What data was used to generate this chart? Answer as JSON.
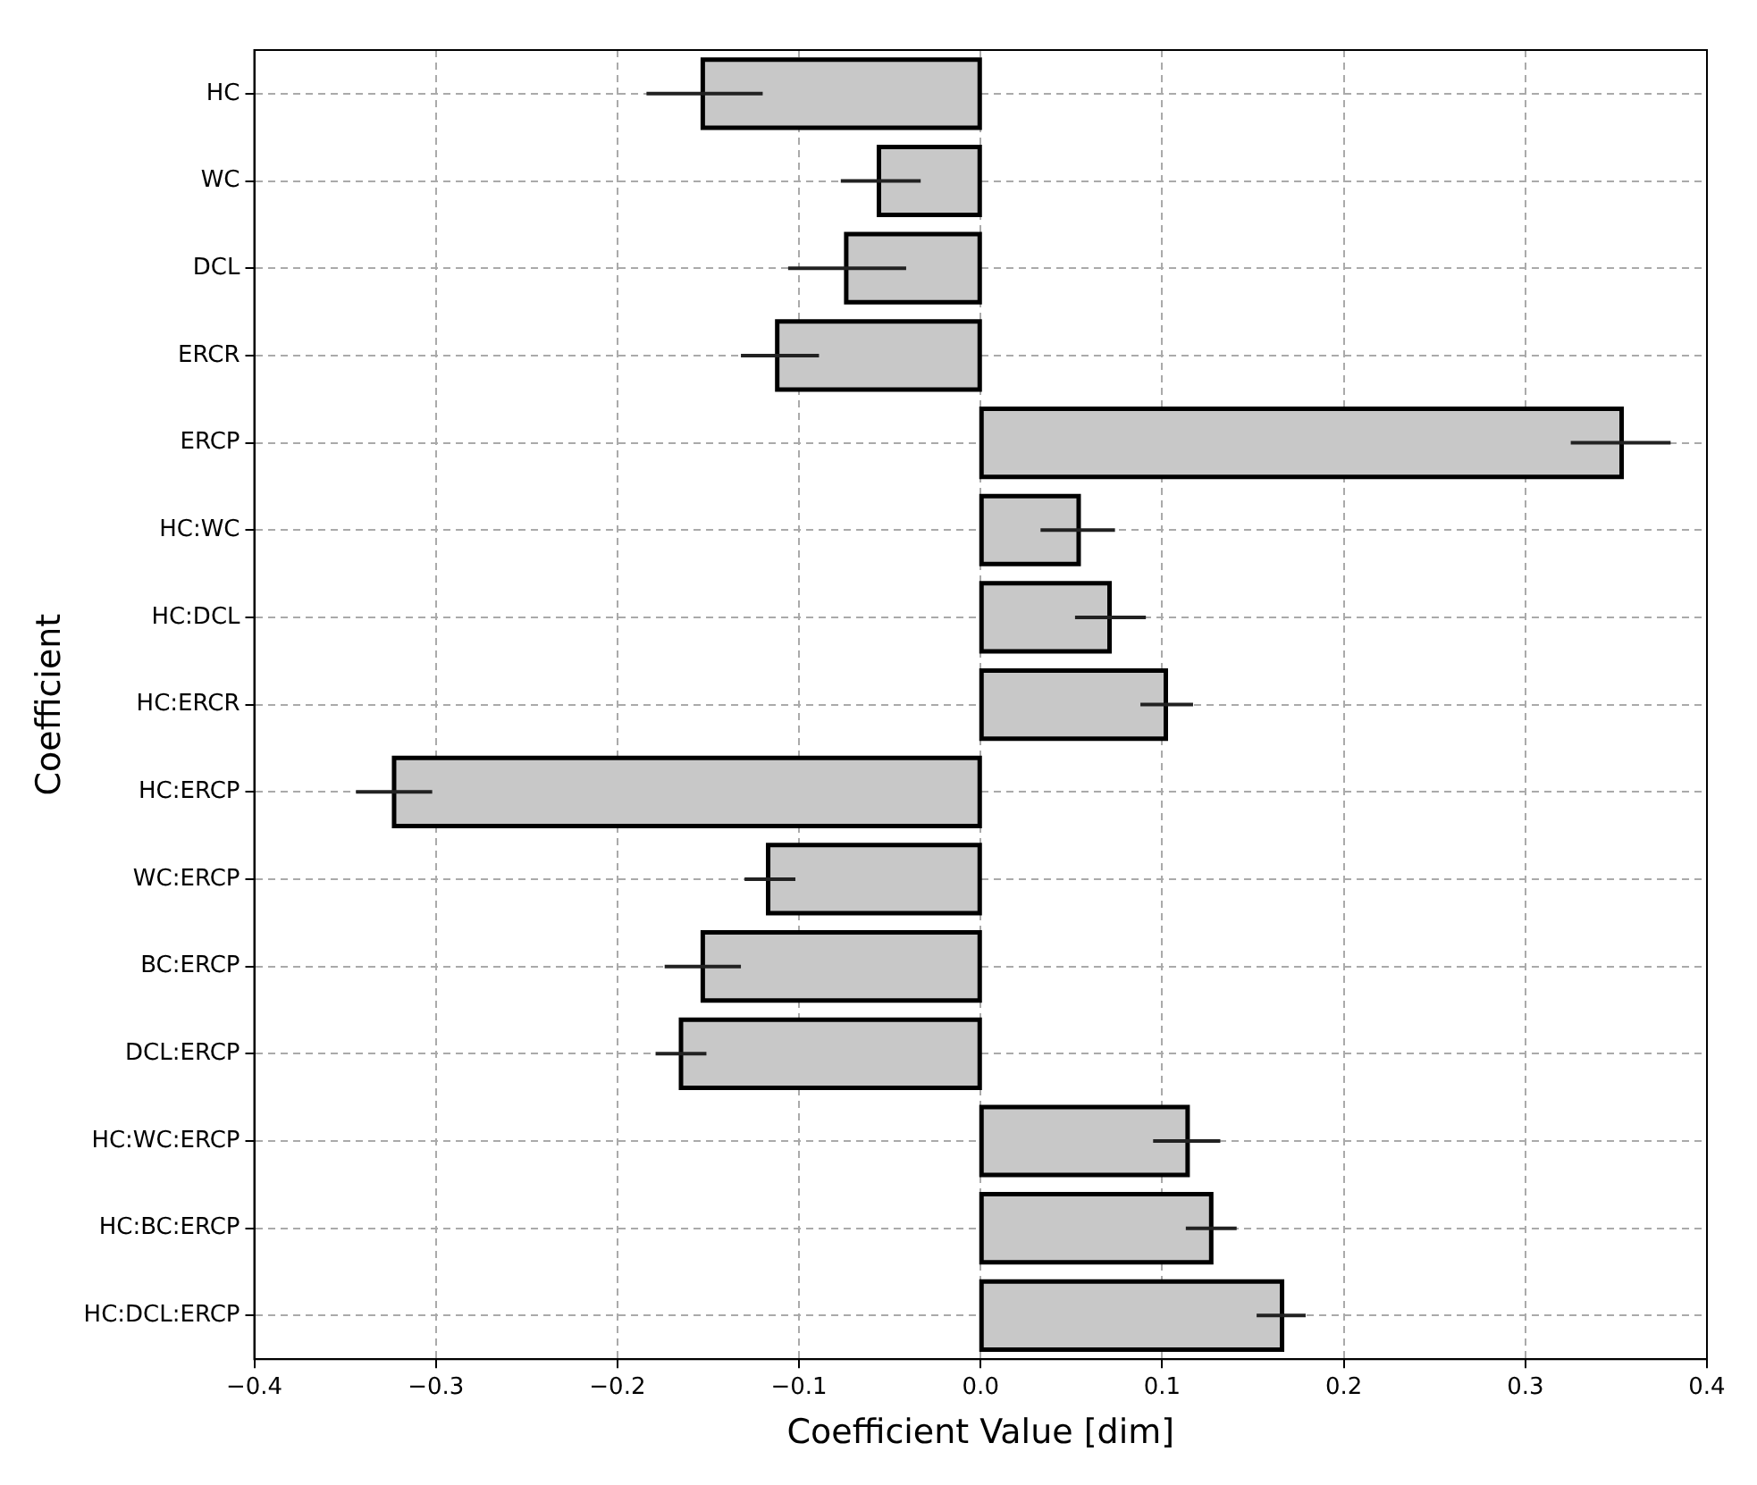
{
  "chart_data": {
    "type": "bar",
    "orientation": "horizontal",
    "xlabel": "Coefficient Value [dim]",
    "ylabel": "Coefficient",
    "categories": [
      "HC",
      "WC",
      "DCL",
      "ERCR",
      "ERCP",
      "HC:WC",
      "HC:DCL",
      "HC:ERCR",
      "HC:ERCP",
      "WC:ERCP",
      "BC:ERCP",
      "DCL:ERCP",
      "HC:WC:ERCP",
      "HC:BC:ERCP",
      "HC:DCL:ERCP"
    ],
    "values": [
      -0.153,
      -0.056,
      -0.074,
      -0.112,
      0.353,
      0.054,
      0.071,
      0.102,
      -0.323,
      -0.117,
      -0.153,
      -0.165,
      0.114,
      0.127,
      0.166
    ],
    "errors": [
      [
        -0.184,
        -0.12
      ],
      [
        -0.077,
        -0.033
      ],
      [
        -0.106,
        -0.041
      ],
      [
        -0.132,
        -0.089
      ],
      [
        0.325,
        0.38
      ],
      [
        0.033,
        0.074
      ],
      [
        0.052,
        0.091
      ],
      [
        0.088,
        0.117
      ],
      [
        -0.344,
        -0.302
      ],
      [
        -0.13,
        -0.102
      ],
      [
        -0.174,
        -0.132
      ],
      [
        -0.179,
        -0.151
      ],
      [
        0.095,
        0.132
      ],
      [
        0.113,
        0.141
      ],
      [
        0.152,
        0.179
      ]
    ],
    "color": "#c8c8c8",
    "xlim": [
      -0.4,
      0.4
    ],
    "xticks": [
      {
        "value": -0.4,
        "label": "−0.4"
      },
      {
        "value": -0.3,
        "label": "−0.3"
      },
      {
        "value": -0.2,
        "label": "−0.2"
      },
      {
        "value": -0.1,
        "label": "−0.1"
      },
      {
        "value": 0,
        "label": "0.0"
      },
      {
        "value": 0.1,
        "label": "0.1"
      },
      {
        "value": 0.2,
        "label": "0.2"
      },
      {
        "value": 0.3,
        "label": "0.3"
      },
      {
        "value": 0.4,
        "label": "0.4"
      }
    ],
    "grid": true,
    "legend": false
  }
}
